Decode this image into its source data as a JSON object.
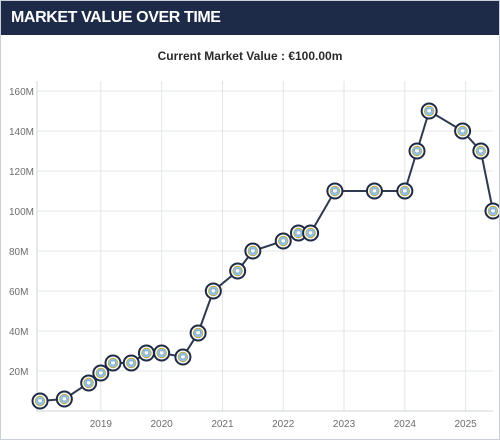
{
  "header": {
    "title": "MARKET VALUE OVER TIME"
  },
  "subtitle": "Current Market Value : €100.00m",
  "colors": {
    "header_bg": "#1d2a48",
    "line": "#2e3b4e",
    "grid": "#e1e4e8",
    "marker_ring": "#1f2a44",
    "marker_fill": "#8fc4e8"
  },
  "marker_icon": "club-crest-icon",
  "chart_data": {
    "type": "line",
    "title": "",
    "xlabel": "",
    "ylabel": "",
    "y_tick_labels": [
      "20M",
      "40M",
      "60M",
      "80M",
      "100M",
      "120M",
      "140M",
      "160M"
    ],
    "y_ticks": [
      20,
      40,
      60,
      80,
      100,
      120,
      140,
      160
    ],
    "x_tick_labels": [
      "2019",
      "2020",
      "2021",
      "2022",
      "2023",
      "2024",
      "2025"
    ],
    "x_ticks": [
      2019,
      2020,
      2021,
      2022,
      2023,
      2024,
      2025
    ],
    "xlim": [
      2017.95,
      2025.45
    ],
    "ylim": [
      0,
      165
    ],
    "grid": true,
    "legend": "none",
    "series": [
      {
        "x": [
          2018.0,
          2018.4,
          2018.8,
          2019.0,
          2019.2,
          2019.5,
          2019.75,
          2020.0,
          2020.35,
          2020.6,
          2020.85,
          2021.25,
          2021.5,
          2022.0,
          2022.25,
          2022.45,
          2022.85,
          2023.5,
          2024.0,
          2024.2,
          2024.4,
          2024.95,
          2025.25,
          2025.45
        ],
        "y": [
          5,
          6,
          14,
          19,
          24,
          24,
          29,
          29,
          27,
          39,
          60,
          70,
          80,
          85,
          89,
          89,
          110,
          110,
          110,
          130,
          150,
          140,
          130,
          100
        ]
      }
    ]
  }
}
